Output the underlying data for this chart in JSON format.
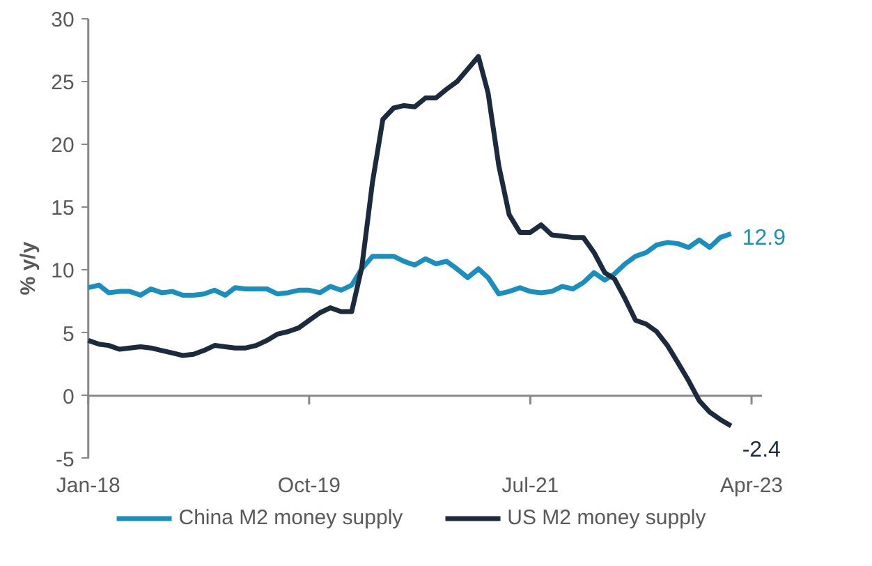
{
  "chart_data": {
    "type": "line",
    "ylabel": "% y/y",
    "x": [
      "2018-01",
      "2018-02",
      "2018-03",
      "2018-04",
      "2018-05",
      "2018-06",
      "2018-07",
      "2018-08",
      "2018-09",
      "2018-10",
      "2018-11",
      "2018-12",
      "2019-01",
      "2019-02",
      "2019-03",
      "2019-04",
      "2019-05",
      "2019-06",
      "2019-07",
      "2019-08",
      "2019-09",
      "2019-10",
      "2019-11",
      "2019-12",
      "2020-01",
      "2020-02",
      "2020-03",
      "2020-04",
      "2020-05",
      "2020-06",
      "2020-07",
      "2020-08",
      "2020-09",
      "2020-10",
      "2020-11",
      "2020-12",
      "2021-01",
      "2021-02",
      "2021-03",
      "2021-04",
      "2021-05",
      "2021-06",
      "2021-07",
      "2021-08",
      "2021-09",
      "2021-10",
      "2021-11",
      "2021-12",
      "2022-01",
      "2022-02",
      "2022-03",
      "2022-04",
      "2022-05",
      "2022-06",
      "2022-07",
      "2022-08",
      "2022-09",
      "2022-10",
      "2022-11",
      "2022-12",
      "2023-01",
      "2023-02"
    ],
    "series": [
      {
        "name": "China M2 money supply",
        "color": "#1a8fbf",
        "values": [
          8.6,
          8.8,
          8.2,
          8.3,
          8.3,
          8.0,
          8.5,
          8.2,
          8.3,
          8.0,
          8.0,
          8.1,
          8.4,
          8.0,
          8.6,
          8.5,
          8.5,
          8.5,
          8.1,
          8.2,
          8.4,
          8.4,
          8.2,
          8.7,
          8.4,
          8.8,
          10.1,
          11.1,
          11.1,
          11.1,
          10.7,
          10.4,
          10.9,
          10.5,
          10.7,
          10.1,
          9.4,
          10.1,
          9.4,
          8.1,
          8.3,
          8.6,
          8.3,
          8.2,
          8.3,
          8.7,
          8.5,
          9.0,
          9.8,
          9.2,
          9.7,
          10.5,
          11.1,
          11.4,
          12.0,
          12.2,
          12.1,
          11.8,
          12.4,
          11.8,
          12.6,
          12.9
        ]
      },
      {
        "name": "US M2 money supply",
        "color": "#1b2a3c",
        "values": [
          4.4,
          4.1,
          4.0,
          3.7,
          3.8,
          3.9,
          3.8,
          3.6,
          3.4,
          3.2,
          3.3,
          3.6,
          4.0,
          3.9,
          3.8,
          3.8,
          4.0,
          4.4,
          4.9,
          5.1,
          5.4,
          6.0,
          6.6,
          7.0,
          6.7,
          6.7,
          10.2,
          17.0,
          22.0,
          22.9,
          23.1,
          23.0,
          23.7,
          23.7,
          24.4,
          25.0,
          26.0,
          27.0,
          24.1,
          18.3,
          14.4,
          13.0,
          13.0,
          13.6,
          12.8,
          12.7,
          12.6,
          12.6,
          11.4,
          9.8,
          9.3,
          7.7,
          6.0,
          5.7,
          5.1,
          4.0,
          2.6,
          1.2,
          -0.4,
          -1.3,
          -1.9,
          -2.4
        ]
      }
    ],
    "annotations": [
      {
        "text": "12.9",
        "x": "2023-02",
        "y": 12.9
      },
      {
        "text": "-2.4",
        "x": "2023-02",
        "y": -2.4
      }
    ],
    "xlim": [
      "2018-01",
      "2023-05"
    ],
    "xticks": [
      {
        "value": "2018-01",
        "label": "Jan-18"
      },
      {
        "value": "2019-10",
        "label": "Oct-19"
      },
      {
        "value": "2021-07",
        "label": "Jul-21"
      },
      {
        "value": "2023-04",
        "label": "Apr-23"
      }
    ],
    "ylim": [
      -5,
      30
    ],
    "yticks": [
      -5,
      0,
      5,
      10,
      15,
      20,
      25,
      30
    ],
    "legend": "bottom",
    "line_style": "solid",
    "marker": "none"
  }
}
